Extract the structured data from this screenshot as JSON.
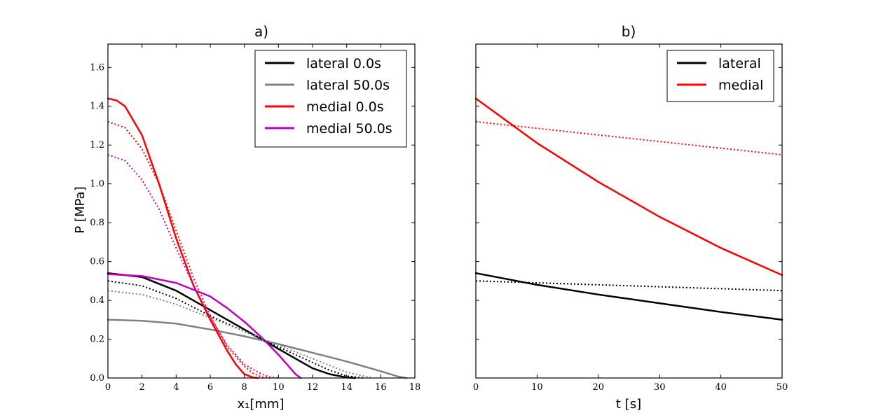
{
  "chart_data": [
    {
      "type": "line",
      "title": "a)",
      "xlabel": "x₁[mm]",
      "ylabel": "P [MPa]",
      "xlim": [
        0,
        18
      ],
      "ylim": [
        0,
        1.72
      ],
      "xticks": [
        "0",
        "2",
        "4",
        "6",
        "8",
        "10",
        "12",
        "14",
        "16",
        "18"
      ],
      "yticks": [
        "0.0",
        "0.2",
        "0.4",
        "0.6",
        "0.8",
        "1.0",
        "1.2",
        "1.4",
        "1.6"
      ],
      "legend_position": "top-right",
      "grid": false,
      "series": [
        {
          "name": "lateral 0.0s",
          "color": "#000000",
          "style": "solid",
          "x": [
            0,
            2,
            4,
            5,
            6,
            7,
            8,
            9,
            10,
            11,
            12,
            13,
            14,
            14.5
          ],
          "y": [
            0.54,
            0.52,
            0.45,
            0.4,
            0.35,
            0.3,
            0.25,
            0.2,
            0.15,
            0.1,
            0.05,
            0.02,
            0.003,
            0
          ]
        },
        {
          "name": "lateral 50.0s",
          "color": "#808080",
          "style": "solid",
          "x": [
            0,
            2,
            4,
            6,
            8,
            10,
            12,
            14,
            16,
            17,
            17.5
          ],
          "y": [
            0.3,
            0.295,
            0.28,
            0.25,
            0.215,
            0.175,
            0.13,
            0.085,
            0.035,
            0.008,
            0
          ]
        },
        {
          "name": "medial 0.0s",
          "color": "#ff0000",
          "style": "solid",
          "x": [
            0,
            0.5,
            1,
            2,
            3,
            4,
            5,
            6,
            6.5,
            7,
            7.5,
            8,
            8.5,
            8.8
          ],
          "y": [
            1.44,
            1.43,
            1.4,
            1.25,
            1.0,
            0.72,
            0.48,
            0.3,
            0.22,
            0.14,
            0.07,
            0.02,
            0.003,
            0
          ]
        },
        {
          "name": "medial 50.0s",
          "color": "#bf00bf",
          "style": "solid",
          "x": [
            0,
            2,
            4,
            6,
            7,
            8,
            9,
            10,
            10.5,
            11,
            11.3
          ],
          "y": [
            0.535,
            0.525,
            0.49,
            0.42,
            0.36,
            0.29,
            0.21,
            0.12,
            0.07,
            0.02,
            0
          ]
        },
        {
          "name": "",
          "color": "#000000",
          "style": "dotted",
          "x": [
            0,
            2,
            4,
            6,
            8,
            10,
            12,
            13,
            14,
            15
          ],
          "y": [
            0.5,
            0.475,
            0.41,
            0.32,
            0.24,
            0.16,
            0.08,
            0.04,
            0.01,
            0
          ]
        },
        {
          "name": "",
          "color": "#808080",
          "style": "dotted",
          "x": [
            0,
            2,
            4,
            6,
            8,
            10,
            12,
            13,
            14,
            15,
            15.5
          ],
          "y": [
            0.45,
            0.43,
            0.38,
            0.31,
            0.24,
            0.17,
            0.1,
            0.065,
            0.03,
            0.01,
            0
          ]
        },
        {
          "name": "",
          "color": "#ff0000",
          "style": "dotted",
          "x": [
            0,
            1,
            2,
            3,
            4,
            5,
            6,
            7,
            8,
            8.5,
            9,
            9.5
          ],
          "y": [
            1.32,
            1.29,
            1.18,
            1.0,
            0.76,
            0.52,
            0.32,
            0.16,
            0.06,
            0.025,
            0.005,
            0
          ]
        },
        {
          "name": "",
          "color": "#bf00bf",
          "style": "dotted",
          "x": [
            0,
            1,
            2,
            3,
            4,
            5,
            6,
            7,
            8,
            9,
            9.5,
            10
          ],
          "y": [
            1.15,
            1.12,
            1.02,
            0.87,
            0.67,
            0.48,
            0.31,
            0.17,
            0.07,
            0.02,
            0.005,
            0
          ]
        }
      ]
    },
    {
      "type": "line",
      "title": "b)",
      "xlabel": "t [s]",
      "ylabel": "",
      "xlim": [
        0,
        50
      ],
      "ylim": [
        0,
        1.72
      ],
      "xticks": [
        "0",
        "10",
        "20",
        "30",
        "40",
        "50"
      ],
      "legend_position": "top-right",
      "grid": false,
      "series": [
        {
          "name": "lateral",
          "color": "#000000",
          "style": "solid",
          "x": [
            0,
            10,
            20,
            30,
            40,
            50
          ],
          "y": [
            0.54,
            0.48,
            0.43,
            0.385,
            0.34,
            0.3
          ]
        },
        {
          "name": "medial",
          "color": "#ff0000",
          "style": "solid",
          "x": [
            0,
            10,
            20,
            30,
            40,
            50
          ],
          "y": [
            1.44,
            1.21,
            1.01,
            0.83,
            0.67,
            0.53
          ]
        },
        {
          "name": "",
          "color": "#000000",
          "style": "dotted",
          "x": [
            0,
            50
          ],
          "y": [
            0.5,
            0.45
          ]
        },
        {
          "name": "",
          "color": "#ff0000",
          "style": "dotted",
          "x": [
            0,
            50
          ],
          "y": [
            1.32,
            1.15
          ]
        }
      ]
    }
  ]
}
